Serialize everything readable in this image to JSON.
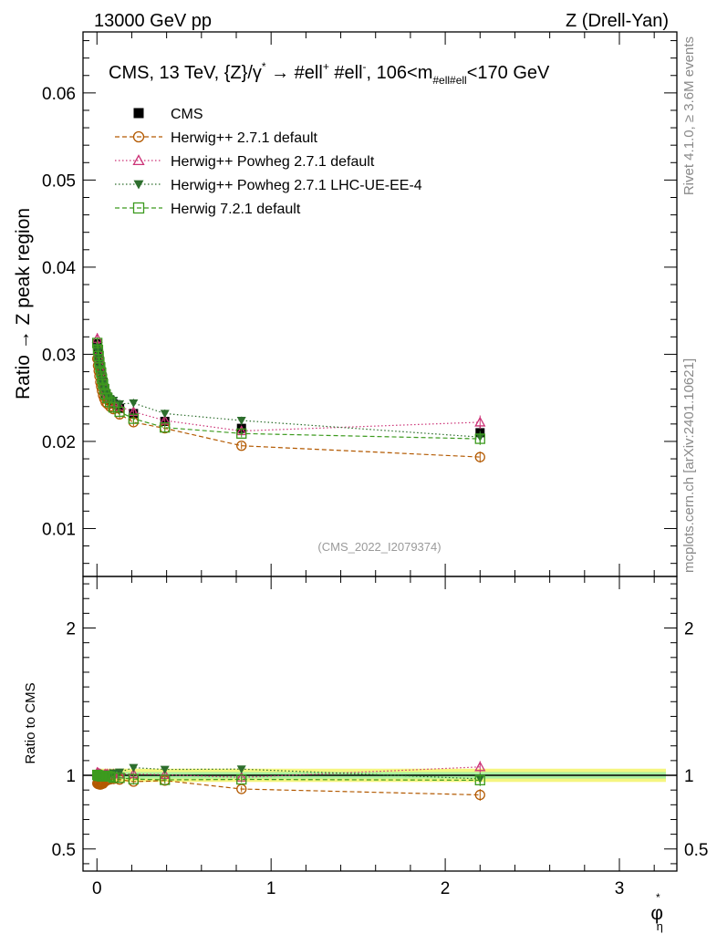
{
  "header": {
    "left": "13000 GeV pp",
    "right": "Z (Drell-Yan)"
  },
  "side_labels": {
    "rivet": "Rivet 4.1.0, ≥ 3.6M events",
    "mcplots": "mcplots.cern.ch [arXiv:2401.10621]"
  },
  "watermark": "(CMS_2022_I2079374)",
  "chart_data": [
    {
      "type": "line",
      "panel": "main",
      "title": "CMS, 13 TeV, {Z}/γ* → #ell+ #ell-, 106<m_#ell#ell<170 GeV",
      "title_parts": {
        "prefix": "CMS, 13 TeV, {Z}/",
        "gamma": "γ",
        "star": "*",
        "arrow": " → ",
        "l1": " #ell",
        "plus": "+",
        "l2": " #ell",
        "minus": "-",
        "mass_pre": ", 106<m",
        "mass_sub": "#ell#ell",
        "mass_post": "<170 GeV"
      },
      "ylabel": "Ratio → Z peak region",
      "xlabel": "φ*η",
      "xlabel_main": "φ",
      "xlabel_sup": "*",
      "xlabel_sub": "η",
      "xlim": [
        -0.08,
        3.33
      ],
      "ylim": [
        0.0045,
        0.067
      ],
      "xticks": [
        0,
        1,
        2,
        3
      ],
      "xtick_labels": [
        "0",
        "1",
        "2",
        "3"
      ],
      "yticks": [
        0.01,
        0.02,
        0.03,
        0.04,
        0.05,
        0.06
      ],
      "ytick_labels": [
        "0.01",
        "0.02",
        "0.03",
        "0.04",
        "0.05",
        "0.06"
      ],
      "x": [
        0.002,
        0.006,
        0.01,
        0.014,
        0.019,
        0.024,
        0.029,
        0.035,
        0.042,
        0.05,
        0.06,
        0.075,
        0.095,
        0.13,
        0.21,
        0.39,
        0.83,
        2.2
      ],
      "series": [
        {
          "name": "CMS",
          "marker": "square-filled",
          "line": "none",
          "color": "#000000",
          "values": [
            0.0312,
            0.0305,
            0.0299,
            0.0292,
            0.0286,
            0.028,
            0.0274,
            0.0268,
            0.0261,
            0.0255,
            0.0251,
            0.0247,
            0.0243,
            0.0238,
            0.0232,
            0.0223,
            0.0215,
            0.021
          ]
        },
        {
          "name": "Herwig++ 2.7.1 default",
          "marker": "circle-open",
          "line": "dashed",
          "color": "#b35900",
          "values": [
            0.0295,
            0.0287,
            0.0281,
            0.0275,
            0.0268,
            0.0263,
            0.0258,
            0.0253,
            0.0249,
            0.0245,
            0.0243,
            0.024,
            0.0237,
            0.0231,
            0.0222,
            0.0215,
            0.0195,
            0.0182
          ]
        },
        {
          "name": "Herwig++ Powheg 2.7.1 default",
          "marker": "triangle-open",
          "line": "dotted",
          "color": "#cc3377",
          "values": [
            0.0318,
            0.031,
            0.0302,
            0.0295,
            0.0288,
            0.0281,
            0.0273,
            0.0267,
            0.0262,
            0.0257,
            0.0253,
            0.0249,
            0.0245,
            0.024,
            0.0234,
            0.0224,
            0.0212,
            0.0222
          ]
        },
        {
          "name": "Herwig++ Powheg 2.7.1 LHC-UE-EE-4",
          "marker": "triangle-down-filled",
          "line": "dotted",
          "color": "#2d6e2d",
          "values": [
            0.0308,
            0.0303,
            0.0296,
            0.029,
            0.0284,
            0.0277,
            0.0271,
            0.0266,
            0.026,
            0.0255,
            0.0251,
            0.0249,
            0.0247,
            0.0243,
            0.0244,
            0.0232,
            0.0224,
            0.0205
          ]
        },
        {
          "name": "Herwig 7.2.1 default",
          "marker": "square-open",
          "line": "dashed",
          "color": "#3c9a1e",
          "values": [
            0.0313,
            0.0305,
            0.0298,
            0.0291,
            0.0285,
            0.0279,
            0.0272,
            0.0266,
            0.026,
            0.0254,
            0.025,
            0.0245,
            0.0239,
            0.0234,
            0.0226,
            0.0216,
            0.0209,
            0.0203
          ]
        }
      ]
    },
    {
      "type": "line",
      "panel": "ratio",
      "ylabel": "Ratio to CMS",
      "xlim": [
        -0.08,
        3.33
      ],
      "ylim": [
        0.35,
        2.35
      ],
      "yticks": [
        0.5,
        1,
        2
      ],
      "ytick_labels": [
        "0.5",
        "1",
        "2"
      ],
      "band_color_outer": "#f5f580",
      "band_color_inner": "#a8f0a0",
      "x": [
        0.002,
        0.006,
        0.01,
        0.014,
        0.019,
        0.024,
        0.029,
        0.035,
        0.042,
        0.05,
        0.06,
        0.075,
        0.095,
        0.13,
        0.21,
        0.39,
        0.83,
        2.2
      ],
      "series": [
        {
          "name": "Herwig++ 2.7.1 default",
          "color": "#b35900",
          "values": [
            0.945,
            0.941,
            0.94,
            0.942,
            0.937,
            0.939,
            0.942,
            0.944,
            0.954,
            0.961,
            0.968,
            0.972,
            0.975,
            0.971,
            0.957,
            0.964,
            0.907,
            0.867
          ]
        },
        {
          "name": "Herwig++ Powheg 2.7.1 default",
          "color": "#cc3377",
          "values": [
            1.019,
            1.016,
            1.01,
            1.01,
            1.007,
            1.004,
            0.996,
            0.996,
            1.004,
            1.008,
            1.008,
            1.008,
            1.008,
            1.008,
            1.009,
            1.004,
            0.986,
            1.057
          ]
        },
        {
          "name": "Herwig++ Powheg 2.7.1 LHC-UE-EE-4",
          "color": "#2d6e2d",
          "values": [
            0.987,
            0.993,
            0.99,
            0.993,
            0.993,
            0.989,
            0.989,
            0.993,
            0.996,
            1.0,
            1.0,
            1.008,
            1.016,
            1.021,
            1.052,
            1.04,
            1.042,
            0.976
          ]
        },
        {
          "name": "Herwig 7.2.1 default",
          "color": "#3c9a1e",
          "values": [
            1.003,
            1.0,
            0.997,
            0.997,
            0.997,
            0.996,
            0.993,
            0.993,
            0.996,
            0.996,
            0.996,
            0.992,
            0.984,
            0.983,
            0.974,
            0.969,
            0.972,
            0.967
          ]
        }
      ]
    }
  ]
}
